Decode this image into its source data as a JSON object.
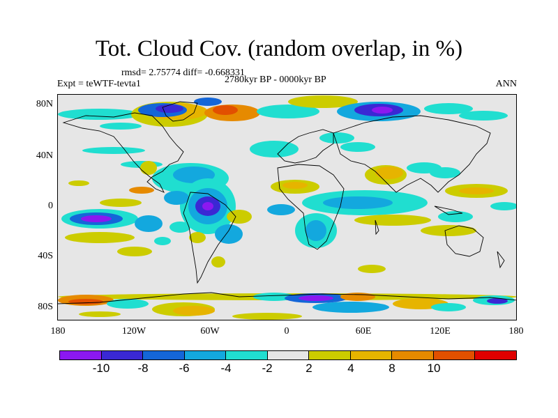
{
  "title": "Tot. Cloud Cov. (random overlap, in %)",
  "stats": "rmsd= 2.75774 diff= -0.668331",
  "period": "2780kyr BP - 0000kyr BP",
  "experiment": "Expt = teWTF-tevta1",
  "season": "ANN",
  "lat_labels": [
    "80N",
    "40N",
    "0",
    "40S",
    "80S"
  ],
  "lon_labels": [
    "180",
    "120W",
    "60W",
    "0",
    "60E",
    "120E",
    "180"
  ],
  "colorbar": {
    "labels": [
      "-10",
      "-8",
      "-6",
      "-4",
      "-2",
      "2",
      "4",
      "8",
      "10"
    ],
    "colors": [
      "#8b18f0",
      "#3a28d4",
      "#1466d8",
      "#13a8de",
      "#20ded0",
      "#e6e6e6",
      "#cccc00",
      "#e6b400",
      "#e68a00",
      "#e25000",
      "#e00000"
    ]
  },
  "background_color": "#e6e6e6"
}
